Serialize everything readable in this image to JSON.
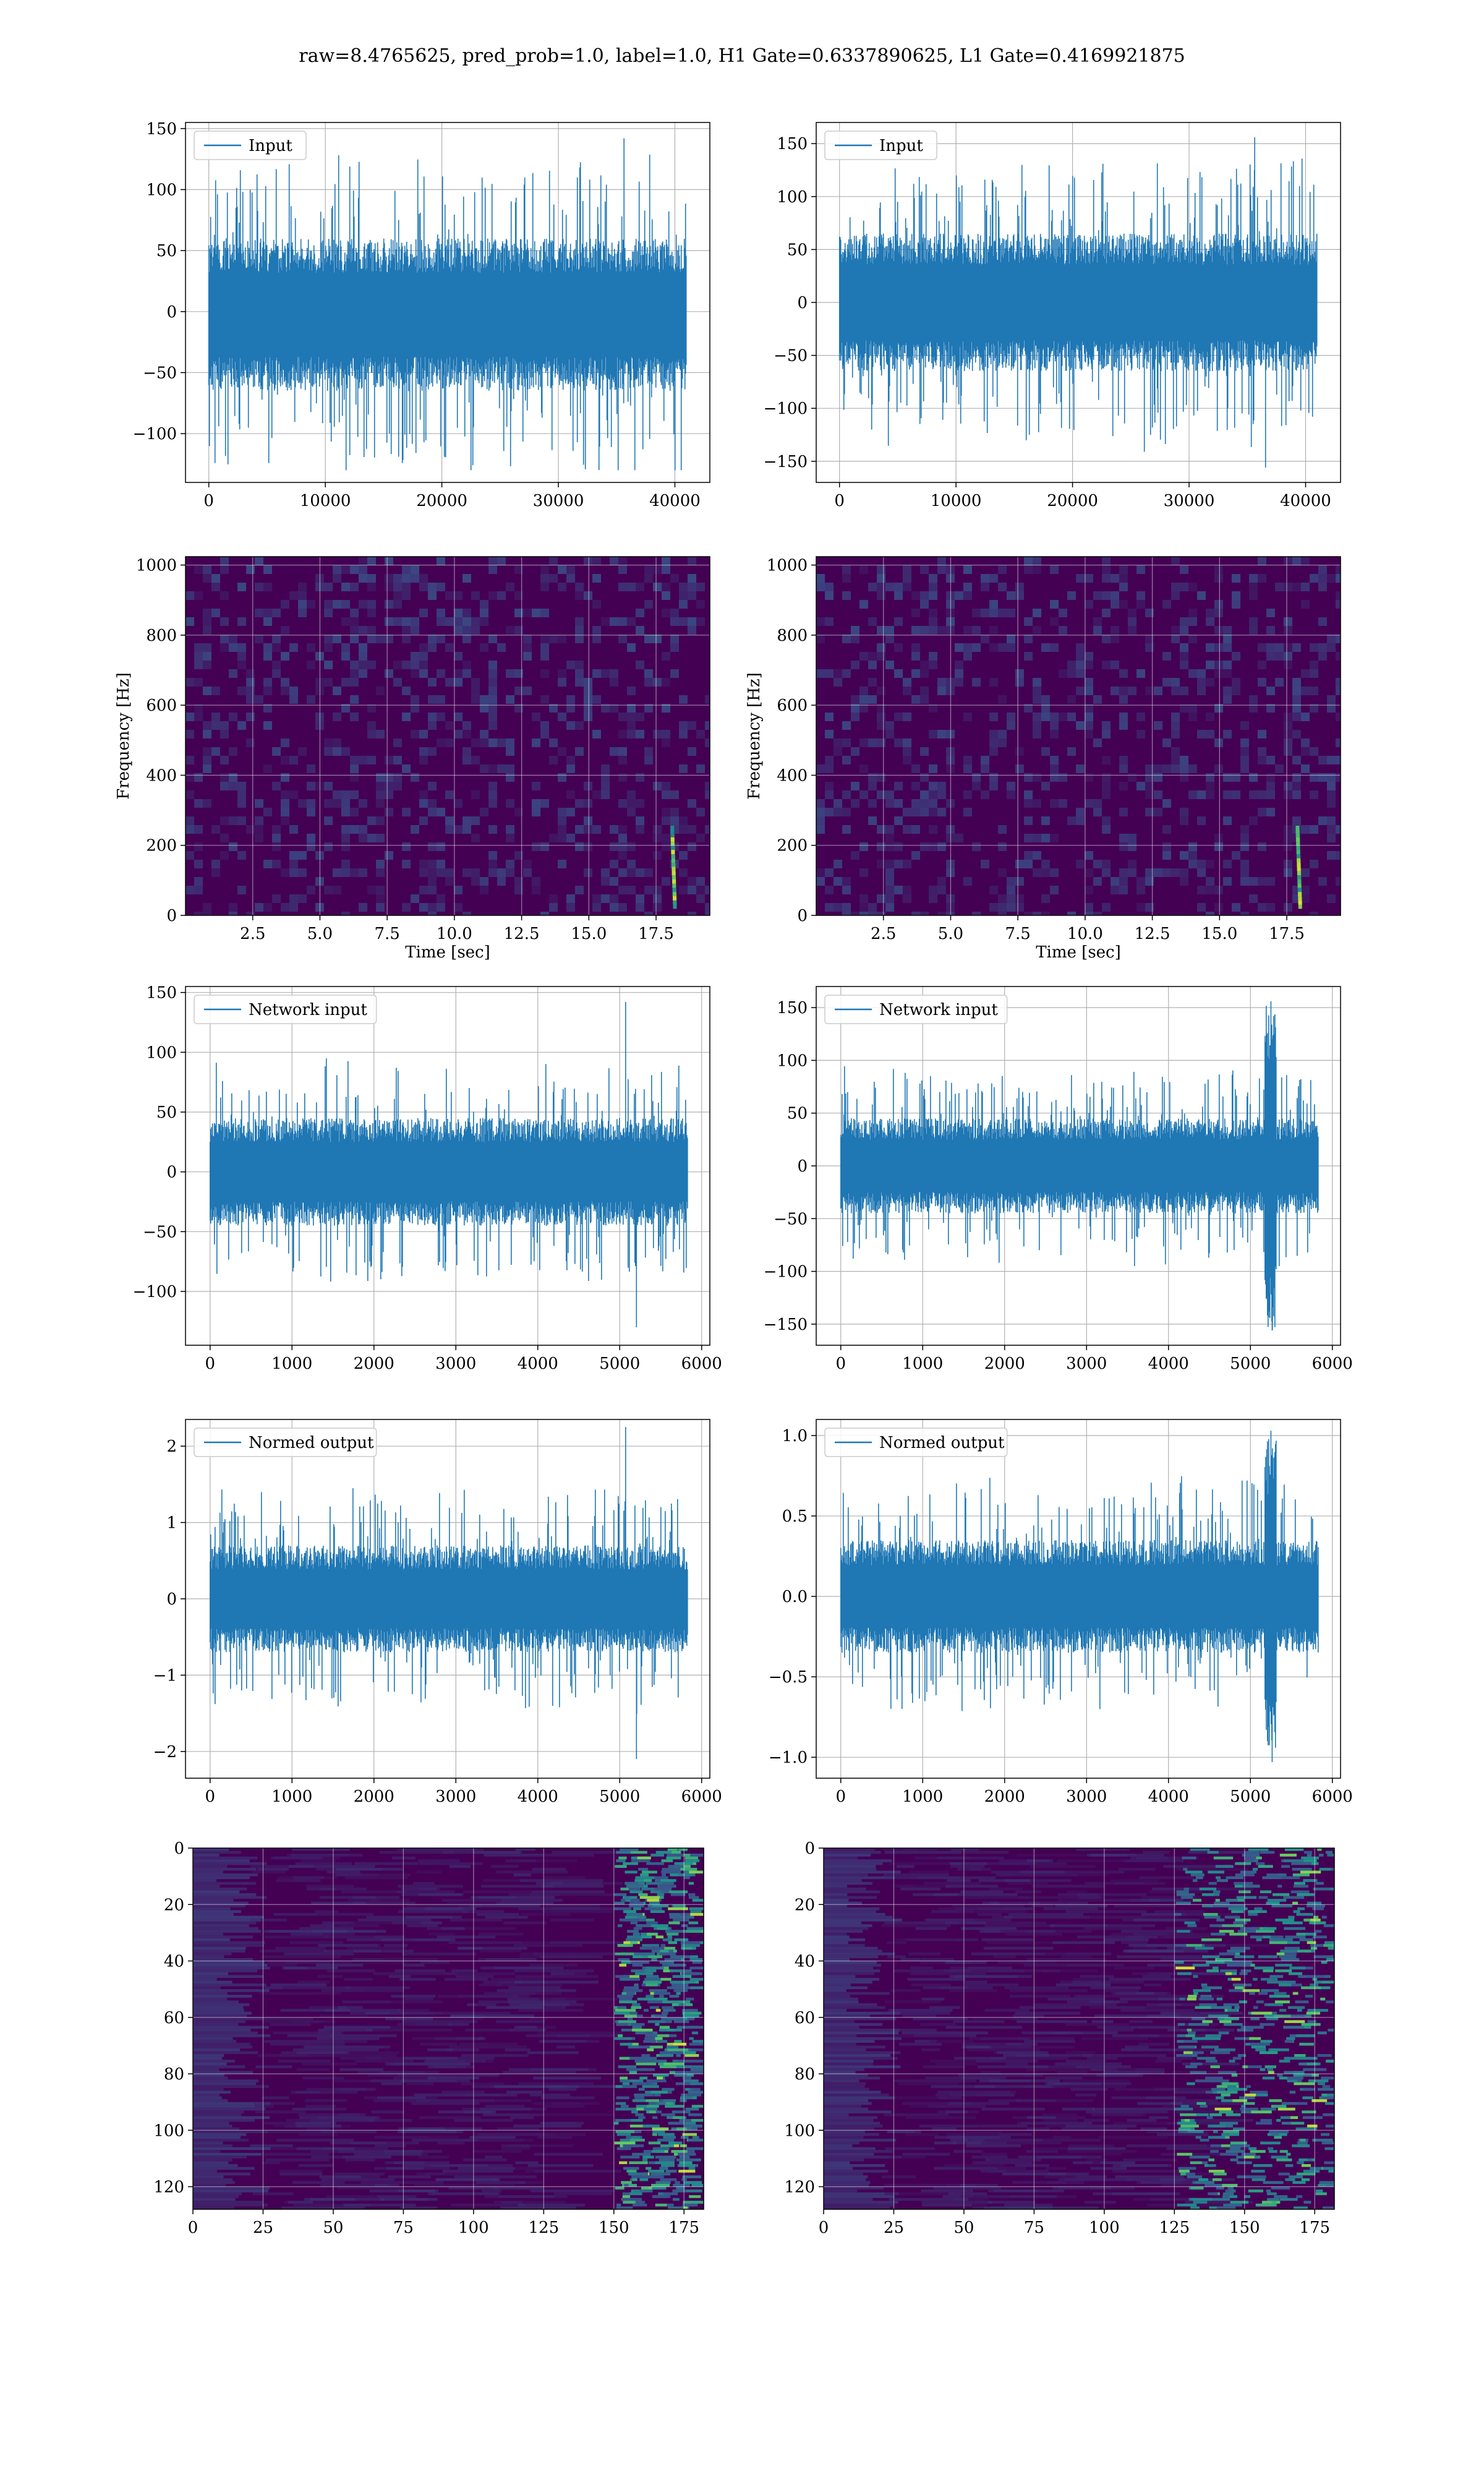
{
  "title": "raw=8.4765625, pred_prob=1.0, label=1.0, H1 Gate=0.6337890625, L1 Gate=0.4169921875",
  "colors": {
    "line": "#1f77b4",
    "spec_bg": "#440154",
    "axis": "#000000",
    "grid": "#b0b0b0"
  },
  "chart_data": [
    {
      "id": "h1-input",
      "type": "line",
      "legend": "Input",
      "legend_position": "upper-left",
      "grid": true,
      "xlim": [
        -2000,
        43000
      ],
      "ylim": [
        -140,
        155
      ],
      "xticks": [
        0,
        10000,
        20000,
        30000,
        40000
      ],
      "yticks": [
        -100,
        -50,
        0,
        50,
        100,
        150
      ],
      "series": [
        {
          "n_points": 40960,
          "x_range": [
            0,
            40960
          ],
          "typical_envelope": [
            -65,
            60
          ],
          "min_peak": -130,
          "max_peak": 142
        }
      ]
    },
    {
      "id": "l1-input",
      "type": "line",
      "legend": "Input",
      "legend_position": "upper-left",
      "grid": true,
      "xlim": [
        -2000,
        43000
      ],
      "ylim": [
        -170,
        170
      ],
      "xticks": [
        0,
        10000,
        20000,
        30000,
        40000
      ],
      "yticks": [
        -150,
        -100,
        -50,
        0,
        50,
        100,
        150
      ],
      "series": [
        {
          "n_points": 40960,
          "x_range": [
            0,
            40960
          ],
          "typical_envelope": [
            -65,
            65
          ],
          "min_peak": -156,
          "max_peak": 156
        }
      ]
    },
    {
      "id": "h1-spectrogram",
      "type": "heatmap",
      "colormap": "viridis",
      "xlabel": "Time [sec]",
      "ylabel": "Frequency [Hz]",
      "grid": true,
      "xlim": [
        0,
        19.5
      ],
      "ylim": [
        0,
        1024
      ],
      "xticks": [
        2.5,
        5.0,
        7.5,
        10.0,
        12.5,
        15.0,
        17.5
      ],
      "yticks": [
        0,
        200,
        400,
        600,
        800,
        1000
      ],
      "features": [
        {
          "kind": "chirp",
          "time": 18.2,
          "freq_range": [
            40,
            260
          ]
        }
      ]
    },
    {
      "id": "l1-spectrogram",
      "type": "heatmap",
      "colormap": "viridis",
      "xlabel": "Time [sec]",
      "ylabel": "Frequency [Hz]",
      "grid": true,
      "xlim": [
        0,
        19.5
      ],
      "ylim": [
        0,
        1024
      ],
      "xticks": [
        2.5,
        5.0,
        7.5,
        10.0,
        12.5,
        15.0,
        17.5
      ],
      "yticks": [
        0,
        200,
        400,
        600,
        800,
        1000
      ],
      "features": [
        {
          "kind": "chirp",
          "time": 18.0,
          "freq_range": [
            40,
            260
          ]
        }
      ]
    },
    {
      "id": "h1-network-input",
      "type": "line",
      "legend": "Network input",
      "legend_position": "upper-left",
      "grid": true,
      "xlim": [
        -300,
        6100
      ],
      "ylim": [
        -145,
        155
      ],
      "xticks": [
        0,
        1000,
        2000,
        3000,
        4000,
        5000,
        6000
      ],
      "yticks": [
        -100,
        -50,
        0,
        50,
        100,
        150
      ],
      "series": [
        {
          "n_points": 5830,
          "x_range": [
            0,
            5830
          ],
          "typical_envelope": [
            -45,
            45
          ],
          "min_peak": -130,
          "max_peak": 142
        }
      ]
    },
    {
      "id": "l1-network-input",
      "type": "line",
      "legend": "Network input",
      "legend_position": "upper-left",
      "grid": true,
      "xlim": [
        -300,
        6100
      ],
      "ylim": [
        -170,
        170
      ],
      "xticks": [
        0,
        1000,
        2000,
        3000,
        4000,
        5000,
        6000
      ],
      "yticks": [
        -150,
        -100,
        -50,
        0,
        50,
        100,
        150
      ],
      "series": [
        {
          "n_points": 5830,
          "x_range": [
            0,
            5830
          ],
          "typical_envelope": [
            -45,
            45
          ],
          "min_peak": -156,
          "max_peak": 156,
          "burst_x": 5250
        }
      ]
    },
    {
      "id": "h1-normed-output",
      "type": "line",
      "legend": "Normed output",
      "legend_position": "upper-left",
      "grid": true,
      "xlim": [
        -300,
        6100
      ],
      "ylim": [
        -2.35,
        2.35
      ],
      "xticks": [
        0,
        1000,
        2000,
        3000,
        4000,
        5000,
        6000
      ],
      "yticks": [
        -2,
        -1,
        0,
        1,
        2
      ],
      "series": [
        {
          "n_points": 5830,
          "x_range": [
            0,
            5830
          ],
          "typical_envelope": [
            -0.7,
            0.7
          ],
          "min_peak": -2.1,
          "max_peak": 2.25
        }
      ]
    },
    {
      "id": "l1-normed-output",
      "type": "line",
      "legend": "Normed output",
      "legend_position": "upper-left",
      "grid": true,
      "xlim": [
        -300,
        6100
      ],
      "ylim": [
        -1.13,
        1.1
      ],
      "xticks": [
        0,
        1000,
        2000,
        3000,
        4000,
        5000,
        6000
      ],
      "yticks": [
        -1.0,
        -0.5,
        0.0,
        0.5,
        1.0
      ],
      "yticklabels": [
        "−1.0",
        "−0.5",
        "0.0",
        "0.5",
        "1.0"
      ],
      "series": [
        {
          "n_points": 5830,
          "x_range": [
            0,
            5830
          ],
          "typical_envelope": [
            -0.35,
            0.35
          ],
          "min_peak": -1.03,
          "max_peak": 1.03,
          "burst_x": 5250
        }
      ]
    },
    {
      "id": "h1-feature-map",
      "type": "heatmap",
      "colormap": "viridis",
      "grid": true,
      "xlim": [
        0,
        182
      ],
      "ylim": [
        128,
        0
      ],
      "xticks": [
        0,
        25,
        50,
        75,
        100,
        125,
        150,
        175
      ],
      "yticks": [
        0,
        20,
        40,
        60,
        80,
        100,
        120
      ],
      "features": [
        {
          "kind": "activation-band",
          "x_range": [
            150,
            178
          ]
        }
      ]
    },
    {
      "id": "l1-feature-map",
      "type": "heatmap",
      "colormap": "viridis",
      "grid": true,
      "xlim": [
        0,
        182
      ],
      "ylim": [
        128,
        0
      ],
      "xticks": [
        0,
        25,
        50,
        75,
        100,
        125,
        150,
        175
      ],
      "yticks": [
        0,
        20,
        40,
        60,
        80,
        100,
        120
      ],
      "features": [
        {
          "kind": "activation-band",
          "x_range": [
            125,
            180
          ]
        }
      ]
    }
  ]
}
